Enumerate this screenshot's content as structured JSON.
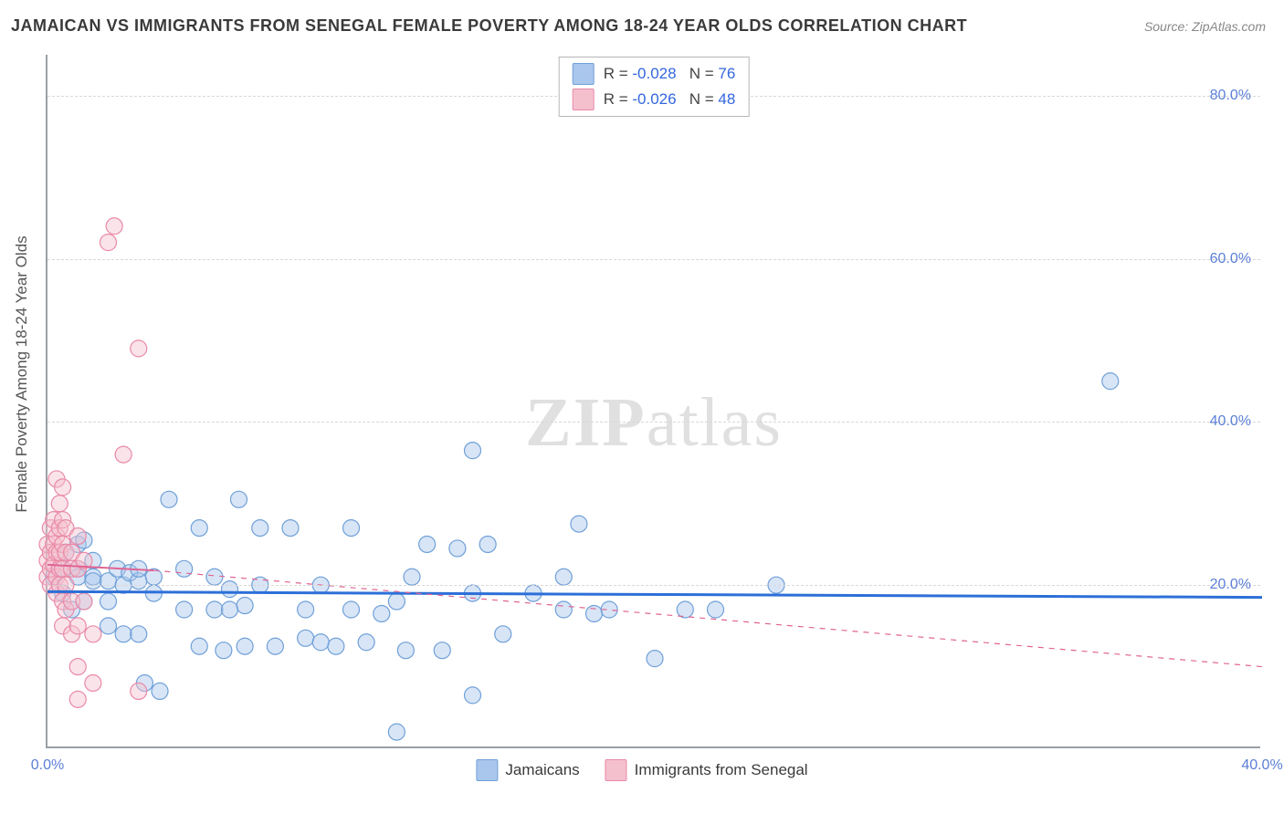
{
  "title": "JAMAICAN VS IMMIGRANTS FROM SENEGAL FEMALE POVERTY AMONG 18-24 YEAR OLDS CORRELATION CHART",
  "source": "Source: ZipAtlas.com",
  "watermark": {
    "bold": "ZIP",
    "rest": "atlas"
  },
  "y_axis_title": "Female Poverty Among 18-24 Year Olds",
  "chart": {
    "type": "scatter",
    "xlim": [
      0,
      40
    ],
    "ylim": [
      0,
      85
    ],
    "x_ticks": [
      {
        "v": 0,
        "label": "0.0%"
      },
      {
        "v": 40,
        "label": "40.0%"
      }
    ],
    "y_ticks": [
      {
        "v": 20,
        "label": "20.0%"
      },
      {
        "v": 40,
        "label": "40.0%"
      },
      {
        "v": 60,
        "label": "60.0%"
      },
      {
        "v": 80,
        "label": "80.0%"
      }
    ],
    "grid_color": "#d8d8d8",
    "axis_color": "#9aa0a6",
    "background": "#ffffff",
    "marker_radius": 9,
    "series": [
      {
        "name": "Jamaicans",
        "fill": "#a9c6ec",
        "stroke": "#6fa0d8",
        "R": "-0.028",
        "N": "76",
        "trend": {
          "color": "#2d6fd8",
          "width": 3,
          "dash": "none",
          "x1": 0,
          "y1": 19.2,
          "x2": 40,
          "y2": 18.5,
          "ext": null
        },
        "points": [
          [
            0.2,
            21
          ],
          [
            0.5,
            22
          ],
          [
            0.5,
            19
          ],
          [
            0.6,
            24
          ],
          [
            0.8,
            17
          ],
          [
            1,
            22
          ],
          [
            1,
            25
          ],
          [
            1,
            21
          ],
          [
            1.2,
            25.5
          ],
          [
            1.2,
            18
          ],
          [
            1.5,
            21
          ],
          [
            1.5,
            23
          ],
          [
            1.5,
            20.5
          ],
          [
            2,
            20.5
          ],
          [
            2,
            18
          ],
          [
            2,
            15
          ],
          [
            2.3,
            22
          ],
          [
            2.5,
            20
          ],
          [
            2.5,
            14
          ],
          [
            2.7,
            21.5
          ],
          [
            3,
            20.5
          ],
          [
            3,
            22
          ],
          [
            3,
            14
          ],
          [
            3.2,
            8
          ],
          [
            3.5,
            21
          ],
          [
            3.5,
            19
          ],
          [
            3.7,
            7
          ],
          [
            4,
            30.5
          ],
          [
            4.5,
            22
          ],
          [
            4.5,
            17
          ],
          [
            5,
            27
          ],
          [
            5,
            12.5
          ],
          [
            5.5,
            17
          ],
          [
            5.5,
            21
          ],
          [
            5.8,
            12
          ],
          [
            6,
            19.5
          ],
          [
            6,
            17
          ],
          [
            6.3,
            30.5
          ],
          [
            6.5,
            17.5
          ],
          [
            6.5,
            12.5
          ],
          [
            7,
            27
          ],
          [
            7,
            20
          ],
          [
            7.5,
            12.5
          ],
          [
            8,
            27
          ],
          [
            8.5,
            17
          ],
          [
            8.5,
            13.5
          ],
          [
            9,
            20
          ],
          [
            9,
            13
          ],
          [
            9.5,
            12.5
          ],
          [
            10,
            27
          ],
          [
            10,
            17
          ],
          [
            10.5,
            13
          ],
          [
            11,
            16.5
          ],
          [
            11.5,
            18
          ],
          [
            11.5,
            2
          ],
          [
            11.8,
            12
          ],
          [
            12,
            21
          ],
          [
            12.5,
            25
          ],
          [
            13,
            12
          ],
          [
            13.5,
            24.5
          ],
          [
            14,
            36.5
          ],
          [
            14,
            6.5
          ],
          [
            14,
            19
          ],
          [
            14.5,
            25
          ],
          [
            15,
            14
          ],
          [
            16,
            19
          ],
          [
            17,
            17
          ],
          [
            17,
            21
          ],
          [
            17.5,
            27.5
          ],
          [
            18,
            16.5
          ],
          [
            18.5,
            17
          ],
          [
            20,
            11
          ],
          [
            21,
            17
          ],
          [
            22,
            17
          ],
          [
            24,
            20
          ],
          [
            35,
            45
          ]
        ]
      },
      {
        "name": "Immigrants from Senegal",
        "fill": "#f4c0ce",
        "stroke": "#e989a8",
        "R": "-0.026",
        "N": "48",
        "trend": {
          "color": "#e06493",
          "width": 2,
          "dash": "none",
          "x1": 0,
          "y1": 22.5,
          "x2": 3.5,
          "y2": 21.8,
          "ext": {
            "dash": "6,6",
            "x1": 3.5,
            "y1": 21.8,
            "x2": 40,
            "y2": 10
          }
        },
        "points": [
          [
            0,
            25
          ],
          [
            0,
            23
          ],
          [
            0,
            21
          ],
          [
            0.1,
            27
          ],
          [
            0.1,
            24
          ],
          [
            0.1,
            22
          ],
          [
            0.1,
            20
          ],
          [
            0.2,
            28
          ],
          [
            0.2,
            25
          ],
          [
            0.2,
            22.5
          ],
          [
            0.3,
            33
          ],
          [
            0.3,
            26
          ],
          [
            0.3,
            24
          ],
          [
            0.3,
            21
          ],
          [
            0.3,
            19
          ],
          [
            0.4,
            30
          ],
          [
            0.4,
            27
          ],
          [
            0.4,
            24
          ],
          [
            0.4,
            22
          ],
          [
            0.4,
            20
          ],
          [
            0.5,
            32
          ],
          [
            0.5,
            28
          ],
          [
            0.5,
            25
          ],
          [
            0.5,
            22
          ],
          [
            0.5,
            18
          ],
          [
            0.5,
            15
          ],
          [
            0.6,
            27
          ],
          [
            0.6,
            24
          ],
          [
            0.6,
            20
          ],
          [
            0.6,
            17
          ],
          [
            0.8,
            24
          ],
          [
            0.8,
            22
          ],
          [
            0.8,
            18
          ],
          [
            0.8,
            14
          ],
          [
            1,
            26
          ],
          [
            1,
            22
          ],
          [
            1,
            15
          ],
          [
            1,
            10
          ],
          [
            1,
            6
          ],
          [
            1.2,
            23
          ],
          [
            1.2,
            18
          ],
          [
            1.5,
            14
          ],
          [
            1.5,
            8
          ],
          [
            2,
            62
          ],
          [
            2.2,
            64
          ],
          [
            2.5,
            36
          ],
          [
            3,
            49
          ],
          [
            3,
            7
          ]
        ]
      }
    ]
  },
  "corr_legend": {
    "r_prefix": "R = ",
    "n_prefix": "N = "
  },
  "bottom_legend": [
    "Jamaicans",
    "Immigrants from Senegal"
  ]
}
